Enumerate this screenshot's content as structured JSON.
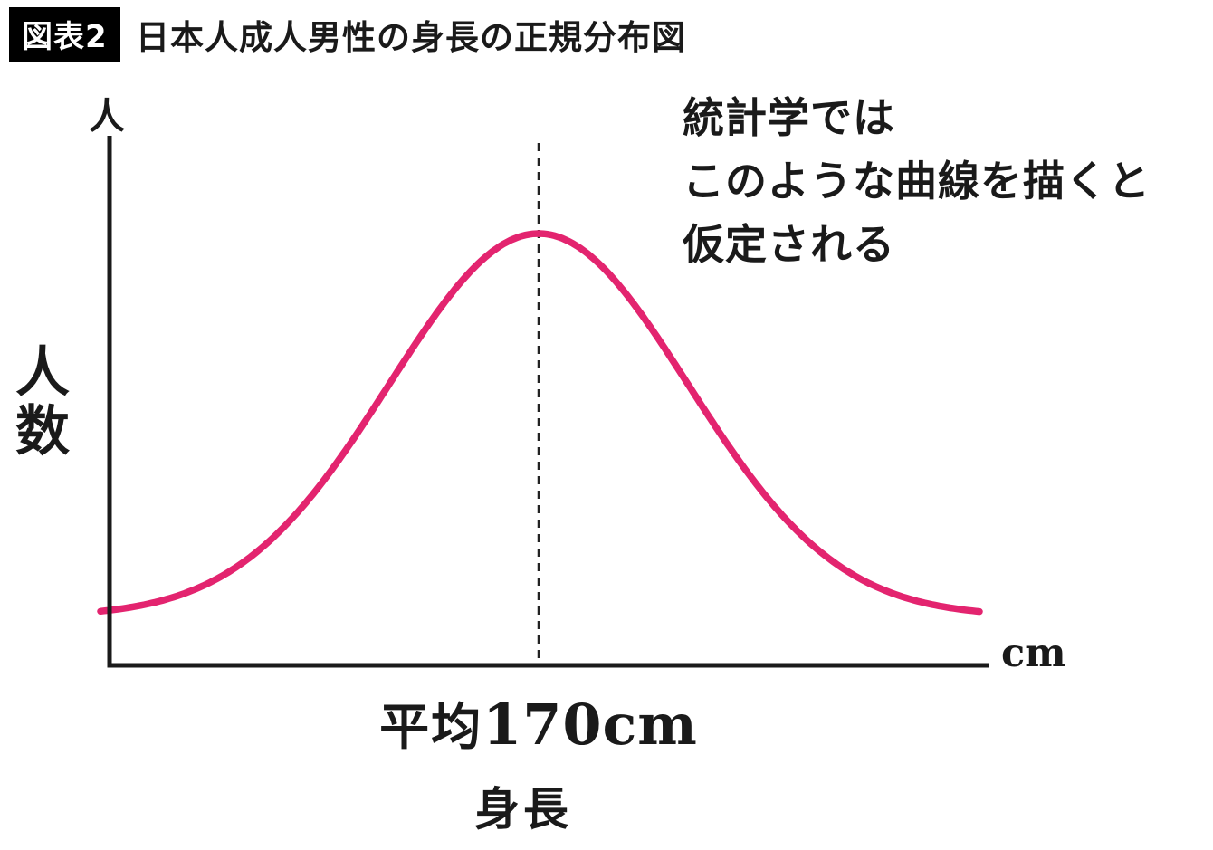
{
  "header": {
    "tag": "図表2",
    "title": "日本人成人男性の身長の正規分布図"
  },
  "chart_data": {
    "type": "line",
    "title": "日本人成人男性の身長の正規分布図",
    "distribution": "normal",
    "xlabel": "身長",
    "ylabel": "人数",
    "ylabel_stacked": "人\n数",
    "x_unit": "cm",
    "y_unit": "人",
    "mean": 170,
    "mean_prefix": "平均",
    "mean_value": "170cm",
    "mean_label": "平均170cm",
    "annotation": "統計学ではこのような曲線を描くと仮定される",
    "annotation_lines": [
      "統計学では",
      "このような曲線を描くと",
      "仮定される"
    ],
    "curve_points_sigma": [
      -3,
      -2,
      -1,
      0,
      1,
      2,
      3
    ],
    "curve_density_relative": [
      0.011,
      0.135,
      0.607,
      1.0,
      0.607,
      0.135,
      0.011
    ],
    "curve_color": "#e3246f",
    "axis_color": "#1a1a1a",
    "grid": false,
    "legend": false,
    "dashed_line_at_mean": true
  }
}
